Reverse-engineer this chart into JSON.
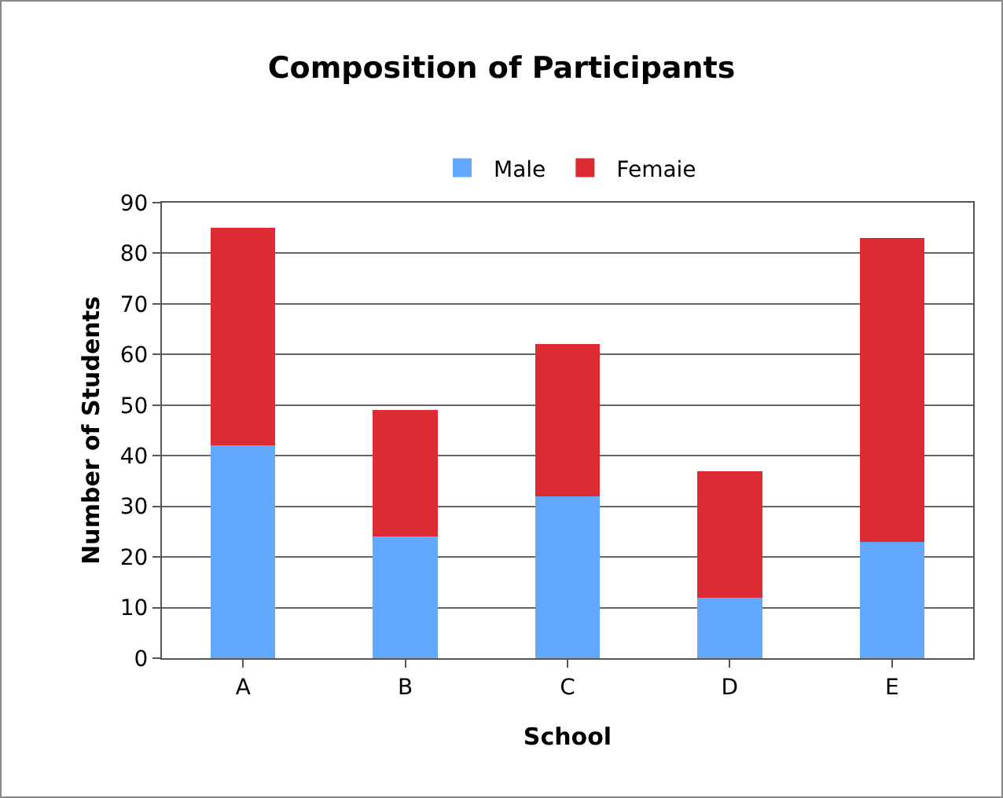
{
  "chart_data": {
    "type": "bar",
    "title": "Composition of Participants",
    "xlabel": "School",
    "ylabel": "Number of Students",
    "categories": [
      "A",
      "B",
      "C",
      "D",
      "E"
    ],
    "stacked": true,
    "series": [
      {
        "name": "Male",
        "color": "#62a8fe",
        "values": [
          42,
          24,
          32,
          12,
          23
        ]
      },
      {
        "name": "Femaie",
        "color": "#dc2b32",
        "values": [
          43,
          25,
          30,
          25,
          60
        ]
      }
    ],
    "ylim": [
      0,
      90
    ],
    "yticks": [
      0,
      10,
      20,
      30,
      40,
      50,
      60,
      70,
      80,
      90
    ],
    "grid": "y",
    "legend": "top"
  }
}
